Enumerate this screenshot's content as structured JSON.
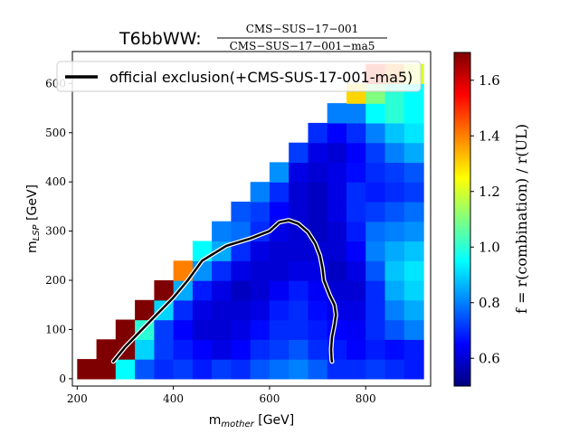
{
  "chart_data": {
    "type": "heatmap",
    "title_prefix": "T6bbWW:",
    "title_numerator": "CMS−SUS−17−001",
    "title_denominator": "CMS−SUS−17−001−ma5",
    "xlabel_main": "m",
    "xlabel_sub": "mother",
    "xlabel_unit": " [GeV]",
    "ylabel_main": "m",
    "ylabel_sub": "LSP",
    "ylabel_unit": " [GeV]",
    "xlim": [
      190,
      935
    ],
    "ylim": [
      -15,
      665
    ],
    "xticks": [
      200,
      400,
      600,
      800
    ],
    "yticks": [
      0,
      100,
      200,
      300,
      400,
      500,
      600
    ],
    "colorbar": {
      "label": "f = r(combination) / r(UL)",
      "range": [
        0.5,
        1.7
      ],
      "ticks": [
        0.6,
        0.8,
        1.0,
        1.2,
        1.4,
        1.6
      ],
      "colormap": "jet",
      "colors": [
        "#00007f",
        "#0000ff",
        "#0080ff",
        "#00ffff",
        "#80ff80",
        "#ffff00",
        "#ff8000",
        "#ff0000",
        "#7f0000"
      ]
    },
    "legend": {
      "position": "top",
      "entries": [
        "official exclusion(+CMS-SUS-17-001-ma5)"
      ]
    },
    "exclusion_curve": [
      [
        275,
        35
      ],
      [
        300,
        65
      ],
      [
        350,
        115
      ],
      [
        400,
        165
      ],
      [
        430,
        200
      ],
      [
        460,
        240
      ],
      [
        510,
        270
      ],
      [
        560,
        285
      ],
      [
        600,
        300
      ],
      [
        620,
        318
      ],
      [
        640,
        322
      ],
      [
        660,
        315
      ],
      [
        680,
        298
      ],
      [
        695,
        275
      ],
      [
        705,
        250
      ],
      [
        710,
        225
      ],
      [
        713,
        200
      ],
      [
        725,
        170
      ],
      [
        735,
        150
      ],
      [
        738,
        130
      ],
      [
        735,
        110
      ],
      [
        730,
        85
      ],
      [
        728,
        60
      ],
      [
        729,
        40
      ],
      [
        730,
        35
      ]
    ],
    "grid_x": [
      220,
      260,
      300,
      340,
      380,
      420,
      460,
      500,
      540,
      580,
      620,
      660,
      700,
      740,
      780,
      820,
      860,
      900
    ],
    "grid_y": [
      20,
      60,
      100,
      140,
      180,
      220,
      260,
      300,
      340,
      380,
      420,
      460,
      500,
      540,
      580,
      620
    ],
    "values": [
      [
        1.7,
        1.7,
        0.95,
        0.75,
        0.7,
        0.72,
        0.68,
        0.72,
        0.7,
        0.75,
        0.78,
        0.8,
        0.76,
        0.7,
        0.7,
        0.72,
        0.7,
        0.68
      ],
      [
        null,
        1.7,
        1.7,
        0.9,
        0.72,
        0.68,
        0.65,
        0.62,
        0.65,
        0.7,
        0.72,
        0.75,
        0.7,
        0.68,
        0.65,
        0.68,
        0.66,
        0.68
      ],
      [
        null,
        null,
        1.7,
        1.0,
        0.72,
        0.65,
        0.6,
        0.6,
        0.62,
        0.66,
        0.7,
        0.7,
        0.68,
        0.65,
        0.64,
        0.7,
        0.75,
        0.8
      ],
      [
        null,
        null,
        null,
        1.7,
        0.9,
        0.7,
        0.62,
        0.6,
        0.6,
        0.62,
        0.68,
        0.7,
        0.66,
        0.62,
        0.62,
        0.7,
        0.8,
        0.85
      ],
      [
        null,
        null,
        null,
        null,
        1.7,
        0.85,
        0.68,
        0.62,
        0.58,
        0.6,
        0.64,
        0.68,
        0.64,
        0.6,
        0.6,
        0.7,
        0.85,
        0.9
      ],
      [
        null,
        null,
        null,
        null,
        null,
        1.4,
        0.82,
        0.7,
        0.62,
        0.6,
        0.6,
        0.62,
        0.62,
        0.58,
        0.62,
        0.75,
        0.88,
        0.92
      ],
      [
        null,
        null,
        null,
        null,
        null,
        null,
        0.95,
        0.85,
        0.7,
        0.62,
        0.6,
        0.6,
        0.6,
        0.6,
        0.65,
        0.8,
        0.85,
        0.88
      ],
      [
        null,
        null,
        null,
        null,
        null,
        null,
        null,
        0.8,
        0.78,
        0.7,
        0.62,
        0.6,
        0.58,
        0.6,
        0.68,
        0.78,
        0.8,
        0.82
      ],
      [
        null,
        null,
        null,
        null,
        null,
        null,
        null,
        null,
        0.75,
        0.72,
        0.65,
        0.6,
        0.58,
        0.62,
        0.7,
        0.72,
        0.75,
        0.78
      ],
      [
        null,
        null,
        null,
        null,
        null,
        null,
        null,
        null,
        null,
        0.8,
        0.7,
        0.6,
        0.58,
        0.62,
        0.7,
        0.68,
        0.7,
        0.72
      ],
      [
        null,
        null,
        null,
        null,
        null,
        null,
        null,
        null,
        null,
        null,
        0.82,
        0.62,
        0.6,
        0.62,
        0.66,
        0.7,
        0.72,
        0.75
      ],
      [
        null,
        null,
        null,
        null,
        null,
        null,
        null,
        null,
        null,
        null,
        null,
        0.72,
        0.62,
        0.6,
        0.65,
        0.72,
        0.8,
        0.85
      ],
      [
        null,
        null,
        null,
        null,
        null,
        null,
        null,
        null,
        null,
        null,
        null,
        null,
        0.7,
        0.65,
        0.7,
        0.8,
        0.88,
        0.92
      ],
      [
        null,
        null,
        null,
        null,
        null,
        null,
        null,
        null,
        null,
        null,
        null,
        null,
        null,
        0.8,
        0.8,
        0.95,
        1.0,
        0.95
      ],
      [
        null,
        null,
        null,
        null,
        null,
        null,
        null,
        null,
        null,
        null,
        null,
        null,
        null,
        null,
        1.3,
        1.1,
        1.0,
        0.95
      ],
      [
        null,
        null,
        null,
        null,
        null,
        null,
        null,
        null,
        null,
        null,
        null,
        null,
        null,
        null,
        null,
        1.5,
        1.4,
        1.2
      ]
    ]
  }
}
